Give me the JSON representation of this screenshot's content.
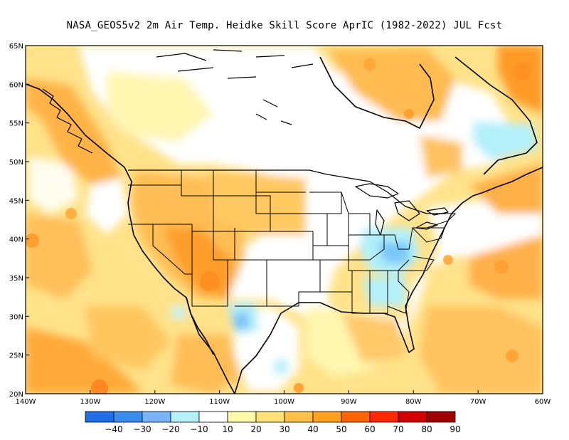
{
  "title": "NASA_GEOS5v2  2m Air Temp. Heidke Skill Score AprIC (1982-2022) JUL Fcst",
  "map": {
    "lon_range": [
      -140,
      -60
    ],
    "lat_range": [
      20,
      65
    ],
    "lat_labels": [
      "20N",
      "25N",
      "30N",
      "35N",
      "40N",
      "45N",
      "50N",
      "55N",
      "60N",
      "65N"
    ],
    "lon_labels": [
      "140W",
      "130W",
      "120W",
      "110W",
      "100W",
      "90W",
      "80W",
      "70W",
      "60W"
    ]
  },
  "colorbar": {
    "colors": [
      "#1e6ee6",
      "#3c8cf0",
      "#78b4f8",
      "#b4f0fa",
      "#ffffff",
      "#fffaaa",
      "#ffe178",
      "#ffc04a",
      "#ffa01e",
      "#ff6400",
      "#ff2800",
      "#d20000",
      "#a00000"
    ],
    "labels": [
      "−40",
      "−30",
      "−20",
      "−10",
      "10",
      "20",
      "30",
      "40",
      "50",
      "60",
      "70",
      "80",
      "90"
    ]
  },
  "features": {
    "ocean_base_color": "#ffe28a",
    "land_base_color": "#ffffff"
  }
}
